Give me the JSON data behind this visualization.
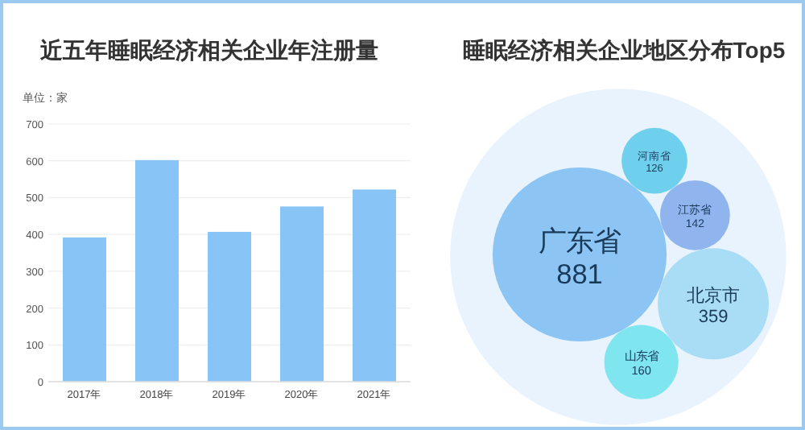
{
  "chart_data": [
    {
      "type": "bar",
      "title": "近五年睡眠经济相关企业年注册量",
      "ylabel": "单位：家",
      "categories": [
        "2017年",
        "2018年",
        "2019年",
        "2020年",
        "2021年"
      ],
      "values": [
        392,
        602,
        407,
        476,
        522
      ],
      "color": "#88c4f5",
      "ylim": [
        0,
        700
      ],
      "yticks": [
        0,
        100,
        200,
        300,
        400,
        500,
        600,
        700
      ],
      "grid": "y"
    },
    {
      "type": "other",
      "title": "睡眠经济相关企业地区分布Top5",
      "categories": [
        "广东省",
        "山东省",
        "北京市",
        "江苏省",
        "河南省"
      ],
      "values": [
        881,
        160,
        359,
        142,
        126
      ],
      "data_labels": true,
      "colors": [
        "#8cc4f4",
        "#7fe6f0",
        "#a9dcf5",
        "#8fb4ee",
        "#6fd0ee"
      ]
    }
  ]
}
